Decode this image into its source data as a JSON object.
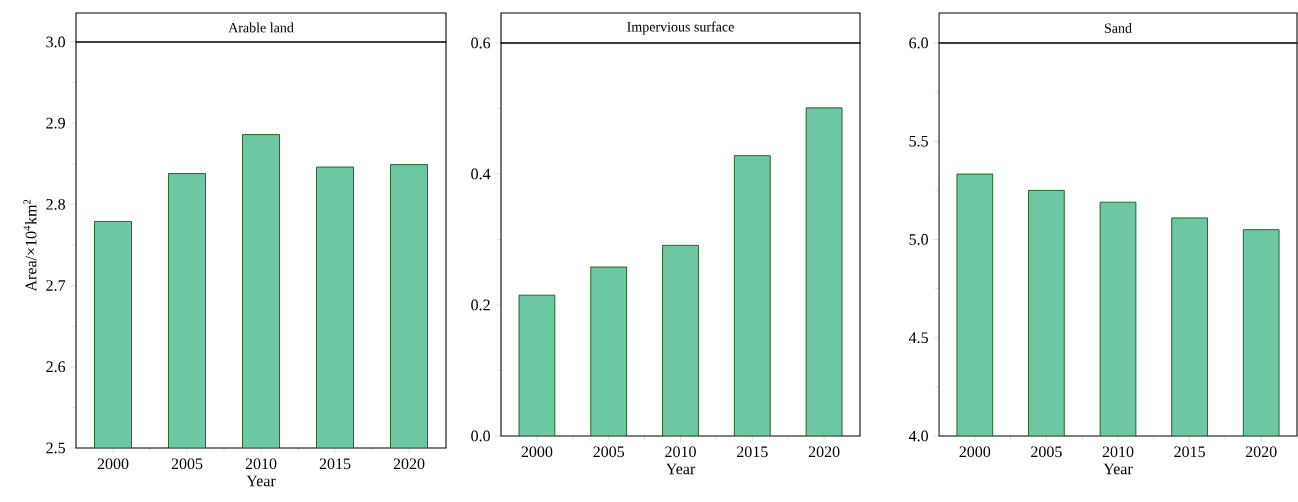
{
  "chart_data": [
    {
      "type": "bar",
      "title": "Arable land",
      "xlabel": "Year",
      "ylabel": "Area/×10$^{4}$km$^{2}$",
      "categories": [
        "2000",
        "2005",
        "2010",
        "2015",
        "2020"
      ],
      "values": [
        2.779,
        2.838,
        2.886,
        2.846,
        2.849
      ],
      "color": "#6cc7a2",
      "ylim": [
        2.5,
        3.0
      ],
      "yticks": [
        {
          "value": 2.5,
          "label": "2.5"
        },
        {
          "value": 2.6,
          "label": "2.6"
        },
        {
          "value": 2.7,
          "label": "2.7"
        },
        {
          "value": 2.8,
          "label": "2.8"
        },
        {
          "value": 2.9,
          "label": "2.9"
        },
        {
          "value": 3.0,
          "label": "3.0"
        }
      ]
    },
    {
      "type": "bar",
      "title": "Impervious surface",
      "xlabel": "Year",
      "categories": [
        "2000",
        "2005",
        "2010",
        "2015",
        "2020"
      ],
      "values": [
        0.215,
        0.258,
        0.291,
        0.428,
        0.501
      ],
      "color": "#6cc7a2",
      "ylim": [
        0,
        0.6
      ],
      "yticks": [
        {
          "value": 0,
          "label": "0.0"
        },
        {
          "value": 0.2,
          "label": "0.2"
        },
        {
          "value": 0.4,
          "label": "0.4"
        },
        {
          "value": 0.6,
          "label": "0.6"
        }
      ]
    },
    {
      "type": "bar",
      "title": "Sand",
      "xlabel": "Year",
      "categories": [
        "2000",
        "2005",
        "2010",
        "2015",
        "2020"
      ],
      "values": [
        5.333,
        5.25,
        5.19,
        5.11,
        5.05
      ],
      "color": "#6cc7a2",
      "ylim": [
        4.0,
        6.0
      ],
      "yticks": [
        {
          "value": 4.0,
          "label": "4.0"
        },
        {
          "value": 4.5,
          "label": "4.5"
        },
        {
          "value": 5.0,
          "label": "5.0"
        },
        {
          "value": 5.5,
          "label": "5.5"
        },
        {
          "value": 6.0,
          "label": "6.0"
        }
      ]
    }
  ]
}
